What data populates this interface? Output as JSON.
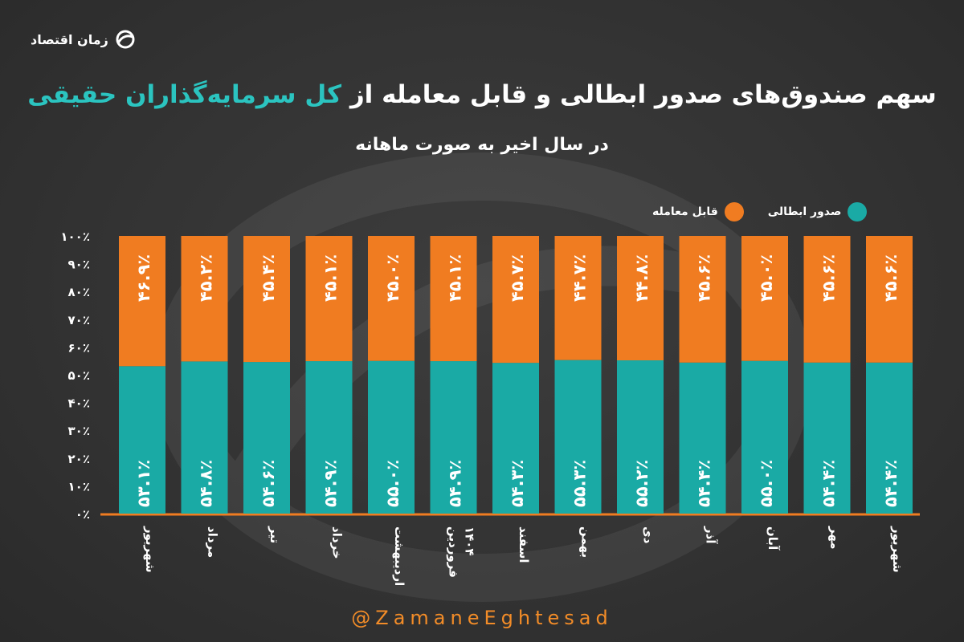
{
  "brand": {
    "name": "زمان اقتصاد"
  },
  "title": {
    "part1": "سهم صندوق‌های صدور ابطالی و قابل معامله از ",
    "highlight": "کل سرمایه‌گذاران حقیقی"
  },
  "subtitle": "در سال اخیر به صورت ماهانه",
  "handle": "@ZamaneEghtesad",
  "colors": {
    "orange": "#f07c21",
    "teal": "#1aaaa5",
    "highlight": "#2bc4c0"
  },
  "legend": [
    {
      "label": "صدور ابطالی",
      "color": "#1aaaa5"
    },
    {
      "label": "قابل معامله",
      "color": "#f07c21"
    }
  ],
  "chart_data": {
    "type": "bar",
    "stacked": true,
    "title": "سهم صندوق‌های صدور ابطالی و قابل معامله از کل سرمایه‌گذاران حقیقی",
    "ylim": [
      0,
      100
    ],
    "y_ticks": [
      "۰٪",
      "۱۰٪",
      "۲۰٪",
      "۳۰٪",
      "۴۰٪",
      "۵۰٪",
      "۶۰٪",
      "۷۰٪",
      "۸۰٪",
      "۹۰٪",
      "۱۰۰٪"
    ],
    "categories": [
      "شهریور",
      "مهر",
      "آبان",
      "آذر",
      "دی",
      "بهمن",
      "اسفند",
      "فروردین ۱۴۰۴",
      "اردیبهشت",
      "خرداد",
      "تیر",
      "مرداد",
      "شهریور"
    ],
    "series": [
      {
        "name": "صدور ابطالی",
        "values": [
          54.4,
          54.4,
          55.0,
          54.4,
          55.2,
          55.3,
          54.3,
          54.9,
          55.0,
          54.9,
          54.6,
          54.8,
          53.1
        ],
        "labels": [
          "۵۴.۴٪",
          "۵۴.۴٪",
          "۵۵.۰٪",
          "۵۴.۴٪",
          "۵۵.۲٪",
          "۵۵.۳٪",
          "۵۴.۳٪",
          "۵۴.۹٪",
          "۵۵.۰٪",
          "۵۴.۹٪",
          "۵۴.۶٪",
          "۵۴.۸٪",
          "۵۳.۱٪"
        ]
      },
      {
        "name": "قابل معامله",
        "values": [
          45.6,
          45.6,
          45.0,
          45.6,
          44.8,
          44.7,
          45.7,
          45.1,
          45.0,
          45.1,
          45.4,
          45.2,
          46.9
        ],
        "labels": [
          "۴۵.۶٪",
          "۴۵.۶٪",
          "۴۵.۰٪",
          "۴۵.۶٪",
          "۴۴.۸٪",
          "۴۴.۷٪",
          "۴۵.۷٪",
          "۴۵.۱٪",
          "۴۵.۰٪",
          "۴۵.۱٪",
          "۴۵.۴٪",
          "۴۵.۲٪",
          "۴۶.۹٪"
        ]
      }
    ],
    "legend_position": "top-right"
  }
}
